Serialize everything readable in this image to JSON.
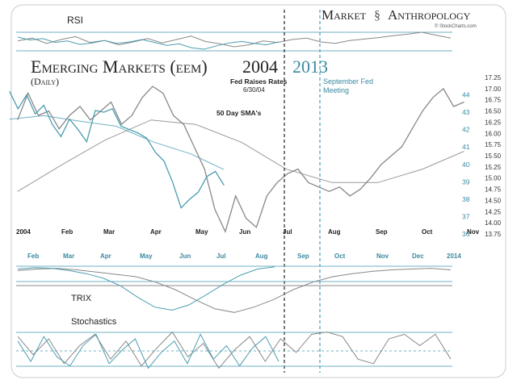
{
  "header": {
    "brand_market": "Market",
    "brand_anthro": "Anthropology",
    "brand_source": "© StockCharts.com",
    "title_main": "Emerging Markets (eem)",
    "title_year_a": "2004",
    "title_year_b": "2013",
    "subtitle": "(Daily)"
  },
  "annotations": {
    "fed_raises_1": "Fed Raises Rates",
    "fed_raises_2": "6/30/04",
    "sept_fed_1": "September Fed",
    "sept_fed_2": "Meeting",
    "sma_label": "50 Day SMA's"
  },
  "panels": {
    "rsi_label": "RSI",
    "trix_label": "TRIX",
    "stoch_label": "Stochastics"
  },
  "colors": {
    "series_2004": "#888888",
    "series_2013": "#4b9db1",
    "sma_2004": "#999999",
    "sma_2013": "#6fb1c3",
    "accent_teal": "#3a8aa0",
    "panel_line": "#6fb1c3"
  },
  "chart_data": [
    {
      "type": "line",
      "title": "Emerging Markets (eem) 2004 2013",
      "subtitle": "(Daily)",
      "series": [
        {
          "name": "2004",
          "color": "#888888",
          "x": [
            "2004-01-02",
            "2004-01-09",
            "2004-01-16",
            "2004-01-23",
            "2004-01-30",
            "2004-02-06",
            "2004-02-13",
            "2004-02-20",
            "2004-02-27",
            "2004-03-05",
            "2004-03-12",
            "2004-03-19",
            "2004-03-26",
            "2004-04-02",
            "2004-04-09",
            "2004-04-16",
            "2004-04-23",
            "2004-04-30",
            "2004-05-07",
            "2004-05-14",
            "2004-05-21",
            "2004-05-28",
            "2004-06-04",
            "2004-06-11",
            "2004-06-18",
            "2004-06-25",
            "2004-07-02",
            "2004-07-09",
            "2004-07-16",
            "2004-07-23",
            "2004-07-30",
            "2004-08-06",
            "2004-08-13",
            "2004-08-20",
            "2004-08-27",
            "2004-09-03",
            "2004-09-10",
            "2004-09-17",
            "2004-09-24",
            "2004-10-01",
            "2004-10-08",
            "2004-10-15",
            "2004-10-22",
            "2004-10-29"
          ],
          "y": [
            16.3,
            16.9,
            16.4,
            16.5,
            16.1,
            16.4,
            16.6,
            16.3,
            16.5,
            16.7,
            16.2,
            16.4,
            16.8,
            17.05,
            16.9,
            16.4,
            16.2,
            15.7,
            15.2,
            14.3,
            13.8,
            14.6,
            14.1,
            13.9,
            14.6,
            14.9,
            15.1,
            15.2,
            14.9,
            14.8,
            14.7,
            14.8,
            14.6,
            14.75,
            15.0,
            15.3,
            15.5,
            15.7,
            16.1,
            16.5,
            16.8,
            17.0,
            16.6,
            16.7
          ],
          "ylim": [
            13.75,
            17.25
          ]
        },
        {
          "name": "2013",
          "color": "#4b9db1",
          "x": [
            "2013-01-04",
            "2013-01-11",
            "2013-01-18",
            "2013-01-25",
            "2013-02-01",
            "2013-02-08",
            "2013-02-15",
            "2013-02-22",
            "2013-03-01",
            "2013-03-08",
            "2013-03-15",
            "2013-03-22",
            "2013-03-29",
            "2013-04-05",
            "2013-04-12",
            "2013-04-19",
            "2013-04-26",
            "2013-05-03",
            "2013-05-10",
            "2013-05-17",
            "2013-05-24",
            "2013-05-31",
            "2013-06-07",
            "2013-06-14",
            "2013-06-21",
            "2013-06-28"
          ],
          "y": [
            44.2,
            43.2,
            44.0,
            42.9,
            43.4,
            42.3,
            41.6,
            42.6,
            42.0,
            41.3,
            43.1,
            43.0,
            43.2,
            42.2,
            42.0,
            41.8,
            41.5,
            40.7,
            40.2,
            39.0,
            37.5,
            38.0,
            38.4,
            39.3,
            39.6,
            38.8
          ],
          "ylim": [
            36,
            45
          ]
        },
        {
          "name": "50 Day SMA's (2004)",
          "color": "#999999",
          "x": [
            "2004-01-02",
            "2004-02-01",
            "2004-03-01",
            "2004-04-01",
            "2004-05-01",
            "2004-06-01",
            "2004-07-01",
            "2004-08-01",
            "2004-09-01",
            "2004-10-01",
            "2004-10-29"
          ],
          "y": [
            14.7,
            15.3,
            15.85,
            16.3,
            16.2,
            15.8,
            15.2,
            14.9,
            14.9,
            15.2,
            15.6
          ]
        },
        {
          "name": "50 Day SMA's (2013)",
          "color": "#6fb1c3",
          "x": [
            "2013-01-04",
            "2013-02-01",
            "2013-03-01",
            "2013-04-01",
            "2013-05-01",
            "2013-06-01",
            "2013-06-28"
          ],
          "y": [
            42.6,
            42.8,
            42.5,
            42.2,
            41.3,
            40.6,
            39.7
          ]
        }
      ],
      "x_labels_2004": [
        "2004",
        "Feb",
        "Mar",
        "Apr",
        "May",
        "Jun",
        "Jul",
        "Aug",
        "Sep",
        "Oct",
        "Nov"
      ],
      "x_labels_2013": [
        "Feb",
        "Mar",
        "Apr",
        "May",
        "Jun",
        "Jul",
        "Aug",
        "Sep",
        "Oct",
        "Nov",
        "Dec",
        "2014"
      ],
      "y_ticks_left": [
        36,
        37,
        38,
        39,
        40,
        41,
        42,
        43,
        44
      ],
      "y_ticks_right": [
        13.75,
        14.0,
        14.25,
        14.5,
        14.75,
        15.0,
        15.25,
        15.5,
        15.75,
        16.0,
        16.25,
        16.5,
        16.75,
        17.0,
        17.25
      ],
      "annotations": [
        "Fed Raises Rates 6/30/04",
        "September Fed Meeting",
        "50 Day SMA's"
      ]
    },
    {
      "type": "line",
      "title": "RSI",
      "series": [
        {
          "name": "2004",
          "values": [
            52,
            58,
            47,
            55,
            61,
            49,
            53,
            44,
            50,
            57,
            48,
            55,
            62,
            51,
            46,
            40,
            44,
            52,
            49,
            55,
            58,
            50,
            47,
            53,
            56,
            59,
            63,
            66,
            70,
            64,
            58
          ]
        },
        {
          "name": "2013",
          "values": [
            60,
            54,
            57,
            49,
            52,
            45,
            48,
            53,
            47,
            50,
            55,
            49,
            43,
            46,
            38,
            35,
            42,
            48,
            51,
            47,
            44,
            50
          ]
        }
      ],
      "levels": [
        70,
        30
      ]
    },
    {
      "type": "line",
      "title": "TRIX",
      "series": [
        {
          "name": "2004",
          "values": [
            0.1,
            0.12,
            0.13,
            0.11,
            0.08,
            0.05,
            0.02,
            -0.05,
            -0.15,
            -0.28,
            -0.4,
            -0.45,
            -0.38,
            -0.28,
            -0.15,
            -0.05,
            0.02,
            0.06,
            0.09,
            0.11,
            0.12,
            0.13,
            0.11
          ]
        },
        {
          "name": "2013",
          "values": [
            0.12,
            0.14,
            0.13,
            0.1,
            0.06,
            0.0,
            -0.1,
            -0.25,
            -0.38,
            -0.42,
            -0.35,
            -0.22,
            -0.08,
            0.04,
            0.12,
            0.15
          ]
        }
      ],
      "levels": [
        0
      ]
    },
    {
      "type": "line",
      "title": "Stochastics",
      "series": [
        {
          "name": "2004",
          "values": [
            80,
            40,
            75,
            20,
            60,
            85,
            30,
            70,
            15,
            55,
            90,
            35,
            65,
            10,
            50,
            80,
            25,
            75,
            45,
            85,
            90,
            80,
            30,
            20,
            75,
            85,
            60,
            85,
            30
          ]
        },
        {
          "name": "2013",
          "values": [
            70,
            25,
            80,
            35,
            15,
            60,
            85,
            20,
            50,
            75,
            10,
            45,
            70,
            20,
            85,
            30,
            60,
            15,
            55,
            80,
            25
          ]
        }
      ],
      "levels": [
        80,
        20
      ]
    }
  ]
}
